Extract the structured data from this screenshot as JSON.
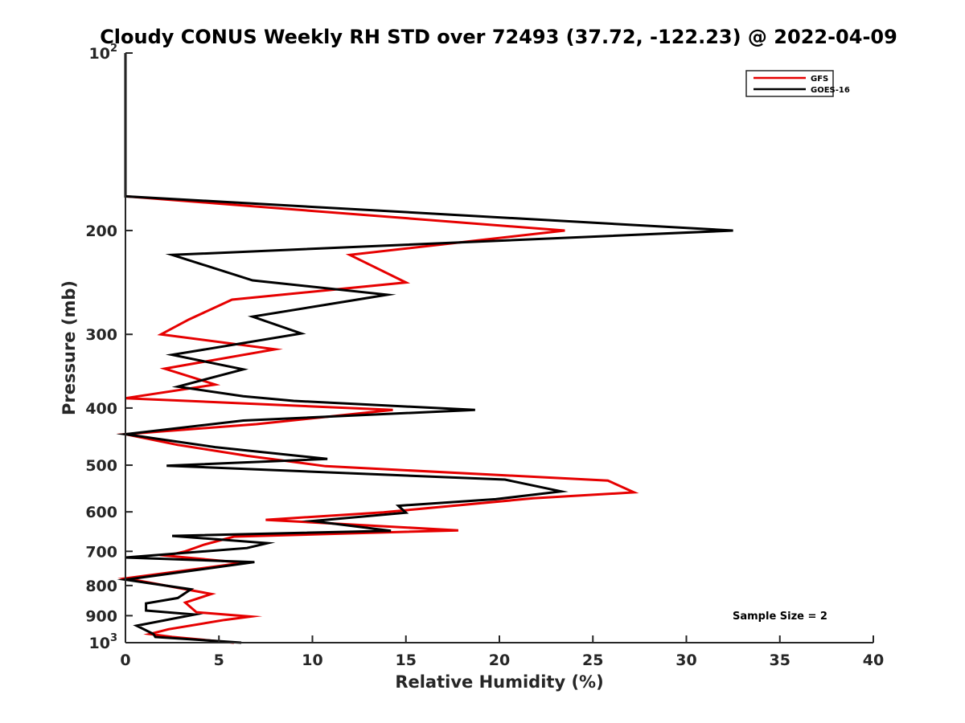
{
  "chart_data": {
    "type": "line",
    "title": "Cloudy CONUS Weekly RH STD over 72493 (37.72, -122.23) @ 2022-04-09",
    "xlabel": "Relative Humidity (%)",
    "ylabel": "Pressure (mb)",
    "xlim": [
      0,
      40
    ],
    "ylim": [
      100,
      1000
    ],
    "y_scale": "log",
    "y_reversed": true,
    "x_ticks": [
      0,
      5,
      10,
      15,
      20,
      25,
      30,
      35,
      40
    ],
    "x_tick_labels": [
      "0",
      "5",
      "10",
      "15",
      "20",
      "25",
      "30",
      "35",
      "40"
    ],
    "y_ticks": [
      100,
      200,
      300,
      400,
      500,
      600,
      700,
      800,
      900,
      1000
    ],
    "y_tick_labels": [
      {
        "base": "10",
        "sup": "2"
      },
      {
        "base": "200"
      },
      {
        "base": "300"
      },
      {
        "base": "400"
      },
      {
        "base": "500"
      },
      {
        "base": "600"
      },
      {
        "base": "700"
      },
      {
        "base": "800"
      },
      {
        "base": "900"
      },
      {
        "base": "10",
        "sup": "3"
      }
    ],
    "grid": false,
    "legend_position": "top-right",
    "annotation": "Sample Size = 2",
    "series": [
      {
        "name": "GFS",
        "color": "#e60000",
        "points": [
          {
            "x": 0,
            "y": 100
          },
          {
            "x": 0,
            "y": 175
          },
          {
            "x": 23.5,
            "y": 200
          },
          {
            "x": 12,
            "y": 220
          },
          {
            "x": 15,
            "y": 245
          },
          {
            "x": 5.7,
            "y": 262
          },
          {
            "x": 3.4,
            "y": 283
          },
          {
            "x": 1.9,
            "y": 300
          },
          {
            "x": 8,
            "y": 318
          },
          {
            "x": 2.1,
            "y": 343
          },
          {
            "x": 4.8,
            "y": 365
          },
          {
            "x": 0,
            "y": 385
          },
          {
            "x": 14.3,
            "y": 403
          },
          {
            "x": 7,
            "y": 426
          },
          {
            "x": 0,
            "y": 443
          },
          {
            "x": 2.8,
            "y": 462
          },
          {
            "x": 6.5,
            "y": 482
          },
          {
            "x": 10.7,
            "y": 502
          },
          {
            "x": 25.8,
            "y": 531
          },
          {
            "x": 27.2,
            "y": 556
          },
          {
            "x": 21.8,
            "y": 569
          },
          {
            "x": 13.8,
            "y": 601
          },
          {
            "x": 7.5,
            "y": 619
          },
          {
            "x": 17.8,
            "y": 645
          },
          {
            "x": 5.8,
            "y": 661
          },
          {
            "x": 4.2,
            "y": 682
          },
          {
            "x": 3.2,
            "y": 700
          },
          {
            "x": 2.2,
            "y": 712
          },
          {
            "x": 6.3,
            "y": 732
          },
          {
            "x": 0,
            "y": 778
          },
          {
            "x": 1.2,
            "y": 790
          },
          {
            "x": 4.6,
            "y": 827
          },
          {
            "x": 3.2,
            "y": 855
          },
          {
            "x": 3.8,
            "y": 888
          },
          {
            "x": 6.7,
            "y": 903
          },
          {
            "x": 5.3,
            "y": 915
          },
          {
            "x": 2.3,
            "y": 949
          },
          {
            "x": 1.3,
            "y": 967
          },
          {
            "x": 2.5,
            "y": 978
          },
          {
            "x": 5.8,
            "y": 1000
          }
        ]
      },
      {
        "name": "GOES-16",
        "color": "#000000",
        "points": [
          {
            "x": 0,
            "y": 100
          },
          {
            "x": 0,
            "y": 175
          },
          {
            "x": 32.5,
            "y": 200
          },
          {
            "x": 2.5,
            "y": 220
          },
          {
            "x": 6.8,
            "y": 243
          },
          {
            "x": 14,
            "y": 257
          },
          {
            "x": 6.8,
            "y": 280
          },
          {
            "x": 9.4,
            "y": 299
          },
          {
            "x": 2.5,
            "y": 325
          },
          {
            "x": 6.3,
            "y": 344
          },
          {
            "x": 2.8,
            "y": 368
          },
          {
            "x": 6.3,
            "y": 382
          },
          {
            "x": 9,
            "y": 389
          },
          {
            "x": 18.7,
            "y": 403
          },
          {
            "x": 6.3,
            "y": 420
          },
          {
            "x": 0,
            "y": 443
          },
          {
            "x": 4.8,
            "y": 466
          },
          {
            "x": 10.8,
            "y": 488
          },
          {
            "x": 2.2,
            "y": 501
          },
          {
            "x": 20.3,
            "y": 529
          },
          {
            "x": 23.3,
            "y": 554
          },
          {
            "x": 19.8,
            "y": 571
          },
          {
            "x": 14.6,
            "y": 586
          },
          {
            "x": 15,
            "y": 602
          },
          {
            "x": 10,
            "y": 622
          },
          {
            "x": 14.2,
            "y": 646
          },
          {
            "x": 2.5,
            "y": 659
          },
          {
            "x": 7.6,
            "y": 678
          },
          {
            "x": 6.5,
            "y": 691
          },
          {
            "x": 0,
            "y": 717
          },
          {
            "x": 6.9,
            "y": 730
          },
          {
            "x": 0,
            "y": 782
          },
          {
            "x": 3.5,
            "y": 812
          },
          {
            "x": 2.8,
            "y": 840
          },
          {
            "x": 1.1,
            "y": 858
          },
          {
            "x": 1.1,
            "y": 882
          },
          {
            "x": 3.7,
            "y": 896
          },
          {
            "x": 0.6,
            "y": 936
          },
          {
            "x": 1.5,
            "y": 967
          },
          {
            "x": 1.6,
            "y": 978
          },
          {
            "x": 6.2,
            "y": 1000
          }
        ]
      }
    ]
  }
}
